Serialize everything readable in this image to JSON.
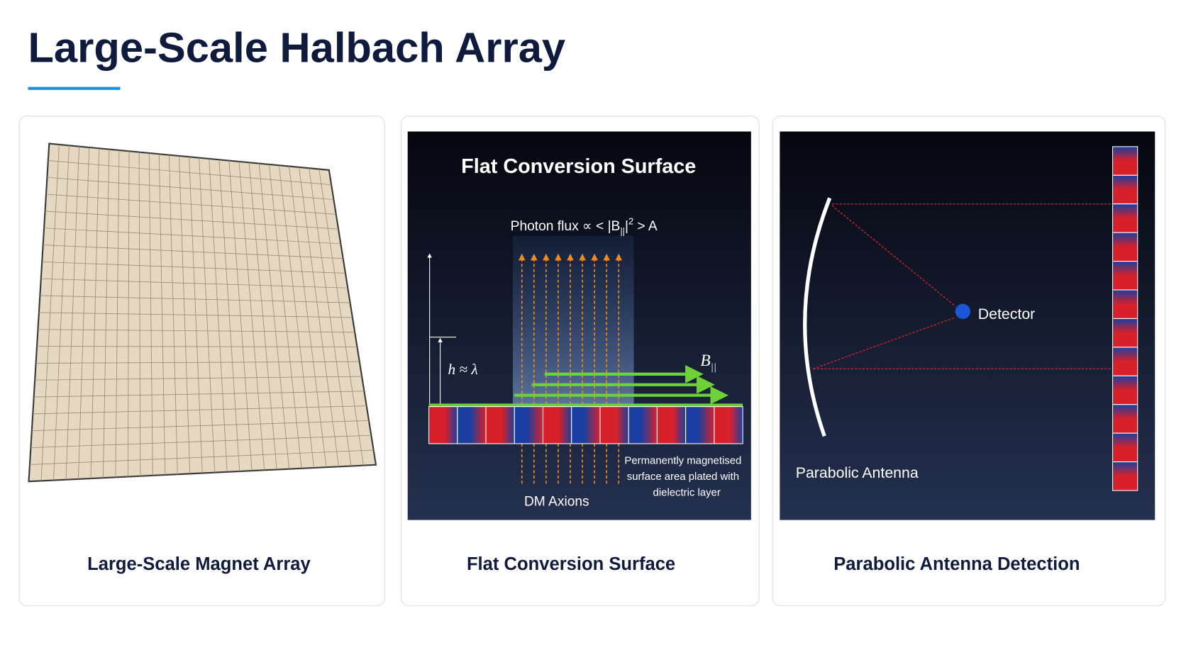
{
  "header": {
    "title": "Large-Scale Halbach Array"
  },
  "cards": [
    {
      "caption": "Large-Scale Magnet Array"
    },
    {
      "caption": "Flat Conversion Surface",
      "panel": {
        "title": "Flat Conversion Surface",
        "photon_flux": {
          "prefix": "Photon flux ∝ < |B",
          "subscript": "||",
          "mid": "|",
          "superscript": "2",
          "suffix": " > A"
        },
        "height_label": "h ≈ λ",
        "field_label": {
          "base": "B",
          "subscript": "||"
        },
        "surface_note": [
          "Permanently magnetised",
          "surface area plated with",
          "dielectric layer"
        ],
        "axions_label": "DM Axions"
      }
    },
    {
      "caption": "Parabolic Antenna Detection",
      "panel": {
        "detector_label": "Detector",
        "antenna_label": "Parabolic Antenna"
      }
    }
  ]
}
